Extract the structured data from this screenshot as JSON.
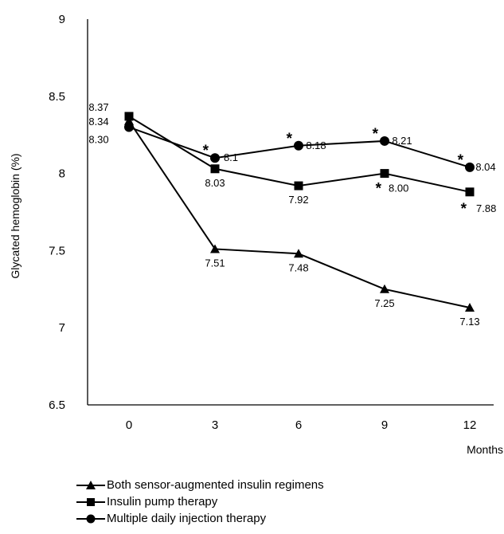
{
  "chart_data": {
    "type": "line",
    "xlabel": "Months",
    "ylabel": "Glycated hemoglobin (%)",
    "x": [
      0,
      3,
      6,
      9,
      12
    ],
    "ylim": [
      6.5,
      9
    ],
    "yticks": [
      "6.5",
      "7",
      "7.5",
      "8",
      "8.5",
      "9"
    ],
    "xticks": [
      "0",
      "3",
      "6",
      "9",
      "12"
    ],
    "grid": false,
    "legend_position": "bottom",
    "series": [
      {
        "name": "Both sensor-augmented insulin regimens",
        "marker": "triangle",
        "values": [
          8.34,
          7.51,
          7.48,
          7.25,
          7.13
        ],
        "labels": [
          "8.34",
          "7.51",
          "7.48",
          "7.25",
          "7.13"
        ],
        "significant": [
          false,
          false,
          false,
          false,
          false
        ]
      },
      {
        "name": "Insulin pump therapy",
        "marker": "square",
        "values": [
          8.37,
          8.03,
          7.92,
          8.0,
          7.88
        ],
        "labels": [
          "8.37",
          "8.03",
          "7.92",
          "8.00",
          "7.88"
        ],
        "significant": [
          false,
          false,
          false,
          true,
          true
        ]
      },
      {
        "name": "Multiple daily injection therapy",
        "marker": "circle",
        "values": [
          8.3,
          8.1,
          8.18,
          8.21,
          8.04
        ],
        "labels": [
          "8.30",
          "8.1",
          "8.18",
          "8.21",
          "8.04"
        ],
        "significant": [
          false,
          true,
          true,
          true,
          true
        ]
      }
    ],
    "significance_marker": "*",
    "line_color": "#000000"
  }
}
